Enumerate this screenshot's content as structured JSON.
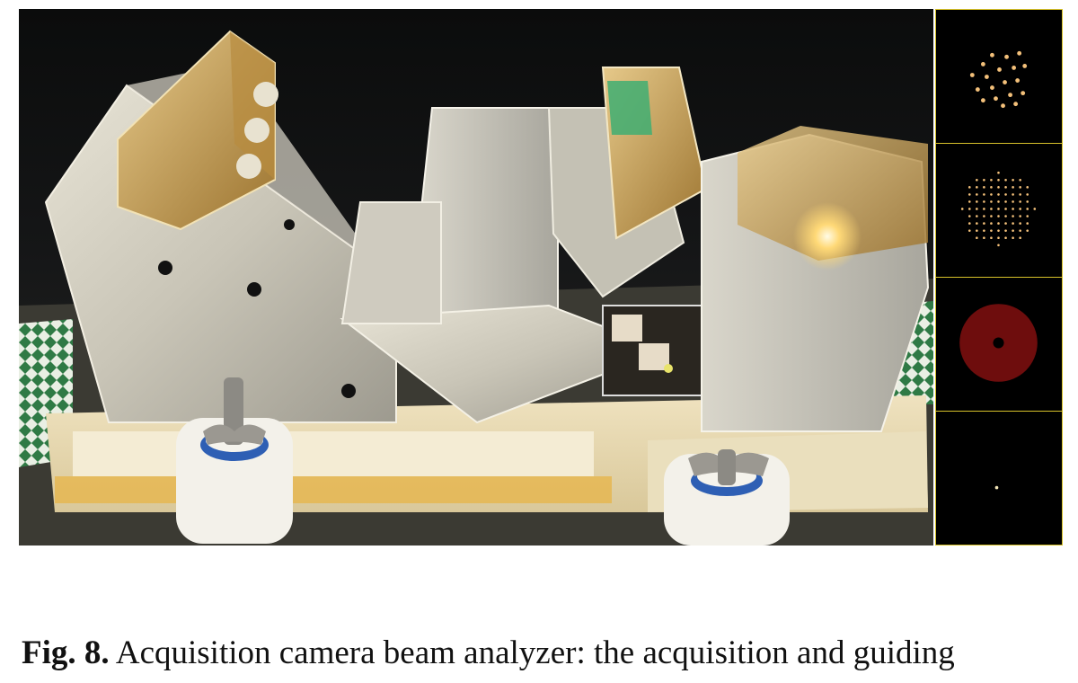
{
  "caption": {
    "label": "Fig. 8.",
    "text": " Acquisition camera beam analyzer: the acquisition and guiding"
  },
  "photo": {
    "subject": "optical prism assembly on foam base"
  },
  "panels": [
    {
      "pattern": "sparse-spot-array",
      "spot_color": "#f3c07a"
    },
    {
      "pattern": "dense-spot-grid",
      "spot_color": "#f3c07a"
    },
    {
      "pattern": "annular-disk",
      "spot_color": "#6e0d0d"
    },
    {
      "pattern": "single-spot",
      "spot_color": "#f3e6b8"
    }
  ]
}
